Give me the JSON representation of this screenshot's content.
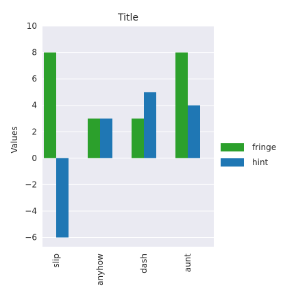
{
  "chart_data": {
    "type": "bar",
    "title": "Title",
    "xlabel": "",
    "ylabel": "Values",
    "categories": [
      "slip",
      "anyhow",
      "dash",
      "aunt"
    ],
    "series": [
      {
        "name": "fringe",
        "color": "#2ca02c",
        "values": [
          8,
          3,
          3,
          8
        ]
      },
      {
        "name": "hint",
        "color": "#1f77b4",
        "values": [
          -6,
          3,
          5,
          4
        ]
      }
    ],
    "ylim": [
      -6.7,
      10
    ],
    "yticks": [
      -6,
      -4,
      -2,
      0,
      2,
      4,
      6,
      8,
      10
    ],
    "grid": true,
    "legend_position": "right",
    "background_color": "#eaeaf2",
    "grid_color": "#ffffff"
  }
}
